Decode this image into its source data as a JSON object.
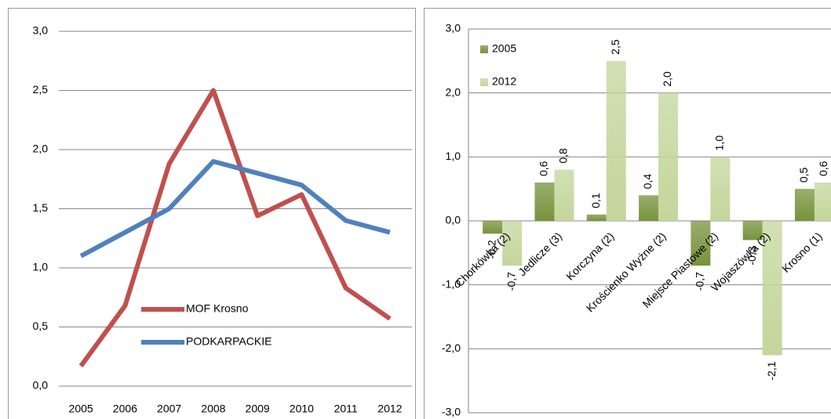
{
  "chart_data": [
    {
      "type": "line",
      "categories": [
        "2005",
        "2006",
        "2007",
        "2008",
        "2009",
        "2010",
        "2011",
        "2012"
      ],
      "series": [
        {
          "name": "MOF Krosno",
          "color": "#c0504d",
          "values": [
            0.17,
            0.68,
            1.88,
            2.5,
            1.44,
            1.62,
            0.83,
            0.57
          ]
        },
        {
          "name": "PODKARPACKIE",
          "color": "#4f81bd",
          "values": [
            1.1,
            1.3,
            1.5,
            1.9,
            1.8,
            1.7,
            1.4,
            1.3
          ]
        }
      ],
      "ylim": [
        0,
        3
      ],
      "yticks": [
        {
          "value": 0,
          "label": "0,0"
        },
        {
          "value": 0.5,
          "label": "0,5"
        },
        {
          "value": 1,
          "label": "1,0"
        },
        {
          "value": 1.5,
          "label": "1,5"
        },
        {
          "value": 2,
          "label": "2,0"
        },
        {
          "value": 2.5,
          "label": "2,5"
        },
        {
          "value": 3,
          "label": "3,0"
        }
      ],
      "grid": true,
      "legend": "bottom-left"
    },
    {
      "type": "bar",
      "categories": [
        "Chorkówka (2)",
        "Jedlicze (3)",
        "Korczyna (2)",
        "Krościenko Wyżne (2)",
        "Miejsce Piastowe (2)",
        "Wojaszówka (2)",
        "Krosno (1)"
      ],
      "series": [
        {
          "name": "2005",
          "color": "#77933c",
          "values": [
            -0.2,
            0.6,
            0.1,
            0.4,
            -0.7,
            -0.3,
            0.5
          ],
          "value_labels": [
            "-0,2",
            "0,6",
            "0,1",
            "0,4",
            "-0,7",
            "-0,3",
            "0,5"
          ]
        },
        {
          "name": "2012",
          "color": "#c3d69b",
          "values": [
            -0.7,
            0.8,
            2.5,
            2.0,
            1.0,
            -2.1,
            0.6
          ],
          "value_labels": [
            "-0,7",
            "0,8",
            "2,5",
            "2,0",
            "1,0",
            "-2,1",
            "0,6"
          ]
        }
      ],
      "ylim": [
        -3,
        3
      ],
      "yticks": [
        {
          "value": -3,
          "label": "-3,0"
        },
        {
          "value": -2,
          "label": "-2,0"
        },
        {
          "value": -1,
          "label": "-1,0"
        },
        {
          "value": 0,
          "label": "0,0"
        },
        {
          "value": 1,
          "label": "1,0"
        },
        {
          "value": 2,
          "label": "2,0"
        },
        {
          "value": 3,
          "label": "3,0"
        }
      ],
      "grid": true,
      "legend": "top-left"
    }
  ]
}
